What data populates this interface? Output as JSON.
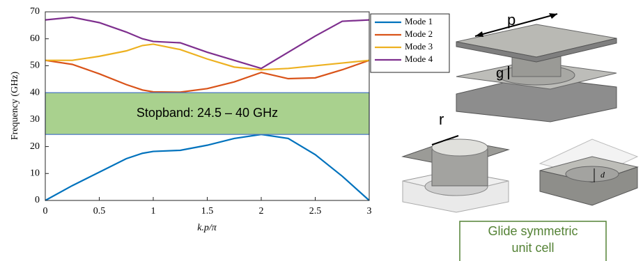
{
  "chart_data": {
    "type": "line",
    "xlabel": "k.p/π",
    "ylabel": "Frequency (GHz)",
    "x": [
      0,
      0.25,
      0.5,
      0.75,
      0.9,
      1,
      1.25,
      1.5,
      1.75,
      2,
      2.25,
      2.5,
      2.75,
      3
    ],
    "series": [
      {
        "name": "Mode 1",
        "color": "#0072bd",
        "values": [
          0,
          5.5,
          10.5,
          15.5,
          17.5,
          18.2,
          18.6,
          20.5,
          23,
          24.5,
          23,
          17,
          9,
          0
        ]
      },
      {
        "name": "Mode 2",
        "color": "#d95319",
        "values": [
          52,
          50.5,
          47,
          43,
          41,
          40.3,
          40.2,
          41.5,
          44,
          47.5,
          45.2,
          45.5,
          48.5,
          52
        ]
      },
      {
        "name": "Mode 3",
        "color": "#edb120",
        "values": [
          52,
          52,
          53.5,
          55.5,
          57.5,
          58,
          56,
          52.5,
          49.5,
          48.5,
          49,
          50,
          51,
          52
        ]
      },
      {
        "name": "Mode 4",
        "color": "#7e2f8e",
        "values": [
          67,
          68,
          66,
          62.5,
          60,
          59,
          58.5,
          55,
          52,
          49,
          55,
          61,
          66.5,
          67
        ]
      }
    ],
    "stopband": {
      "from": 24.5,
      "to": 40,
      "label": "Stopband: 24.5 – 40 GHz",
      "color": "#a9d18e"
    },
    "xlim": [
      0,
      3
    ],
    "xticks": [
      0,
      0.5,
      1,
      1.5,
      2,
      2.5,
      3
    ],
    "ylim": [
      0,
      70
    ],
    "yticks": [
      0,
      10,
      20,
      30,
      40,
      50,
      60,
      70
    ],
    "legend": "top-right"
  },
  "illustration": {
    "p": "p",
    "g": "g",
    "r": "r",
    "d": "d",
    "caption": [
      "Glide symmetric",
      "unit cell"
    ]
  }
}
